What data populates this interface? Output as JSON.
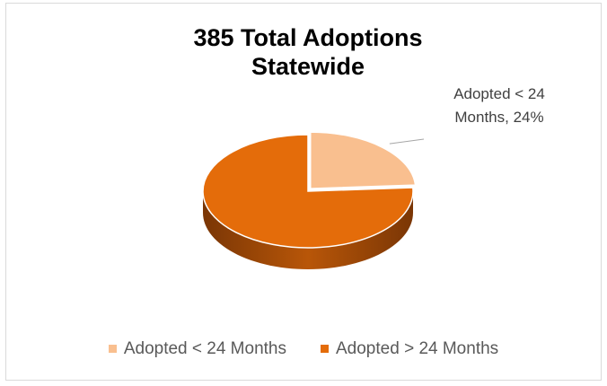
{
  "chart_data": {
    "type": "pie",
    "title": "385 Total Adoptions Statewide",
    "categories": [
      "Adopted < 24 Months",
      "Adopted > 24 Months"
    ],
    "values": [
      24,
      76
    ],
    "value_labels": [
      "Adopted < 24 Months, 24%",
      null
    ],
    "colors": [
      "#f9bf8f",
      "#e46c0a"
    ],
    "legend": "bottom"
  }
}
